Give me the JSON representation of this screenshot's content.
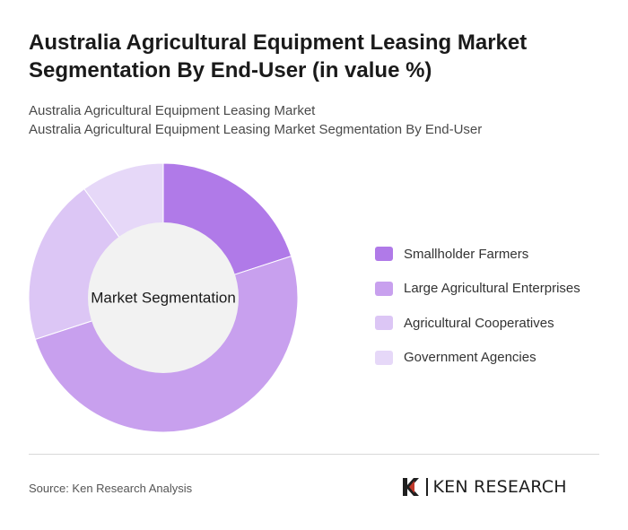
{
  "title": "Australia Agricultural Equipment Leasing Market Segmentation By End-User (in value %)",
  "subtitle_line1": "Australia Agricultural Equipment Leasing Market",
  "subtitle_line2": "Australia Agricultural Equipment Leasing Market Segmentation By End-User",
  "center_label": "Market Segmentation",
  "source": "Source: Ken Research Analysis",
  "logo_text": "KEN RESEARCH",
  "chart_data": {
    "type": "pie",
    "variant": "donut",
    "center_label": "Market Segmentation",
    "legend_position": "right",
    "categories": [
      "Smallholder Farmers",
      "Large Agricultural Enterprises",
      "Agricultural Cooperatives",
      "Government Agencies"
    ],
    "values": [
      20,
      50,
      20,
      10
    ],
    "colors": [
      "#b07ae8",
      "#c8a0ee",
      "#dcc6f5",
      "#e6d8f8"
    ]
  }
}
